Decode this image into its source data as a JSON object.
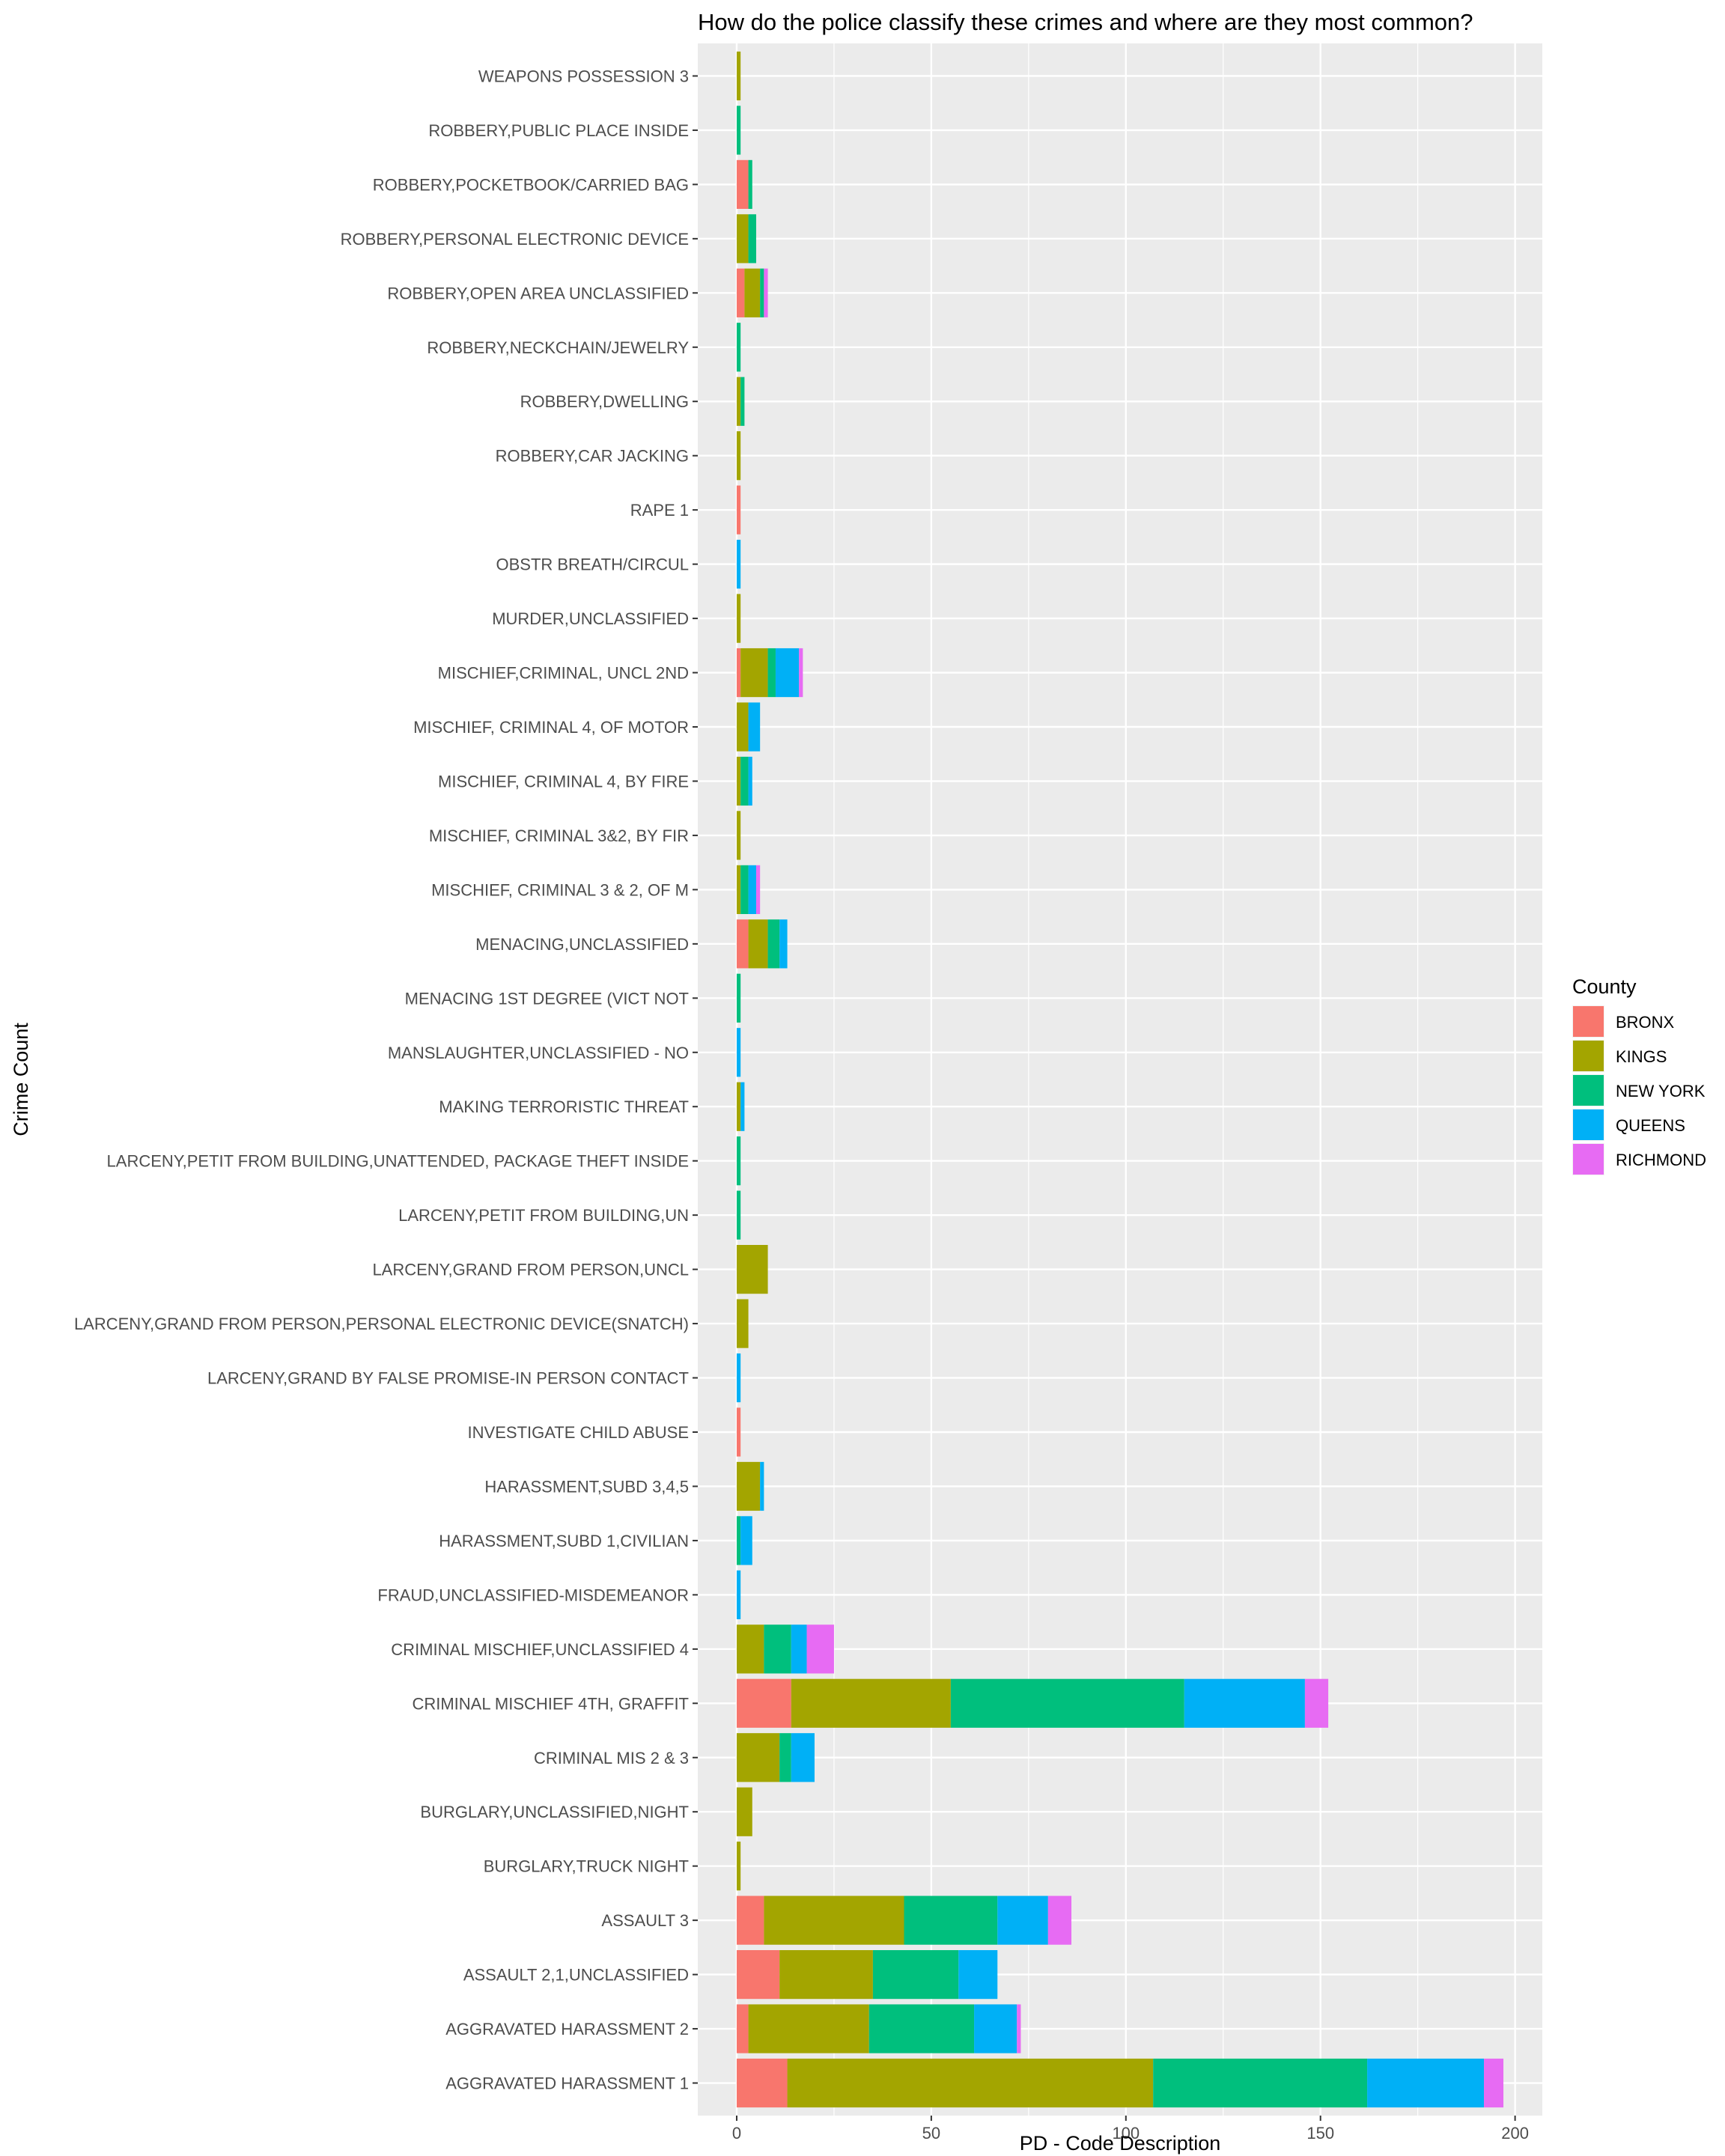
{
  "chart_data": {
    "type": "bar",
    "orientation": "horizontal",
    "stacked": true,
    "title": "How do the police classify these crimes and where are they most common?",
    "xlabel": "PD - Code Description",
    "ylabel": "Crime Count",
    "xlim": [
      -10,
      207
    ],
    "xticks": [
      0,
      50,
      100,
      150,
      200
    ],
    "grid": true,
    "legend": {
      "title": "County",
      "position": "right"
    },
    "categories": [
      "AGGRAVATED HARASSMENT 1",
      "AGGRAVATED HARASSMENT 2",
      "ASSAULT 2,1,UNCLASSIFIED",
      "ASSAULT 3",
      "BURGLARY,TRUCK NIGHT",
      "BURGLARY,UNCLASSIFIED,NIGHT",
      "CRIMINAL MIS 2 & 3",
      "CRIMINAL MISCHIEF 4TH, GRAFFIT",
      "CRIMINAL MISCHIEF,UNCLASSIFIED 4",
      "FRAUD,UNCLASSIFIED-MISDEMEANOR",
      "HARASSMENT,SUBD 1,CIVILIAN",
      "HARASSMENT,SUBD 3,4,5",
      "INVESTIGATE CHILD ABUSE",
      "LARCENY,GRAND BY FALSE PROMISE-IN PERSON CONTACT",
      "LARCENY,GRAND FROM PERSON,PERSONAL ELECTRONIC DEVICE(SNATCH)",
      "LARCENY,GRAND FROM PERSON,UNCL",
      "LARCENY,PETIT FROM BUILDING,UN",
      "LARCENY,PETIT FROM BUILDING,UNATTENDED, PACKAGE THEFT INSIDE",
      "MAKING TERRORISTIC THREAT",
      "MANSLAUGHTER,UNCLASSIFIED - NO",
      "MENACING 1ST DEGREE (VICT NOT",
      "MENACING,UNCLASSIFIED",
      "MISCHIEF, CRIMINAL 3 & 2, OF M",
      "MISCHIEF, CRIMINAL 3&2, BY FIR",
      "MISCHIEF, CRIMINAL 4, BY FIRE",
      "MISCHIEF, CRIMINAL 4, OF MOTOR",
      "MISCHIEF,CRIMINAL,    UNCL 2ND",
      "MURDER,UNCLASSIFIED",
      "OBSTR BREATH/CIRCUL",
      "RAPE 1",
      "ROBBERY,CAR JACKING",
      "ROBBERY,DWELLING",
      "ROBBERY,NECKCHAIN/JEWELRY",
      "ROBBERY,OPEN AREA UNCLASSIFIED",
      "ROBBERY,PERSONAL ELECTRONIC DEVICE",
      "ROBBERY,POCKETBOOK/CARRIED BAG",
      "ROBBERY,PUBLIC PLACE INSIDE",
      "WEAPONS POSSESSION 3"
    ],
    "series": [
      {
        "name": "BRONX",
        "color": "#F8766D",
        "values": [
          13,
          3,
          11,
          7,
          0,
          0,
          0,
          14,
          0,
          0,
          0,
          0,
          1,
          0,
          0,
          0,
          0,
          0,
          0,
          0,
          0,
          3,
          0,
          0,
          0,
          0,
          1,
          0,
          0,
          1,
          0,
          0,
          0,
          2,
          0,
          3,
          0,
          0
        ]
      },
      {
        "name": "KINGS",
        "color": "#A3A500",
        "values": [
          94,
          31,
          24,
          36,
          1,
          4,
          11,
          41,
          7,
          0,
          0,
          6,
          0,
          0,
          3,
          8,
          0,
          0,
          1,
          0,
          0,
          5,
          1,
          1,
          1,
          3,
          7,
          1,
          0,
          0,
          1,
          1,
          0,
          4,
          3,
          0,
          0,
          1
        ]
      },
      {
        "name": "NEW YORK",
        "color": "#00BF7D",
        "values": [
          55,
          27,
          22,
          24,
          0,
          0,
          3,
          60,
          7,
          0,
          1,
          0,
          0,
          0,
          0,
          0,
          1,
          1,
          0,
          0,
          1,
          3,
          2,
          0,
          2,
          0,
          2,
          0,
          0,
          0,
          0,
          1,
          1,
          1,
          2,
          1,
          1,
          0
        ]
      },
      {
        "name": "QUEENS",
        "color": "#00B0F6",
        "values": [
          30,
          11,
          10,
          13,
          0,
          0,
          6,
          31,
          4,
          1,
          3,
          1,
          0,
          1,
          0,
          0,
          0,
          0,
          1,
          1,
          0,
          2,
          2,
          0,
          1,
          3,
          6,
          0,
          1,
          0,
          0,
          0,
          0,
          0,
          0,
          0,
          0,
          0
        ]
      },
      {
        "name": "RICHMOND",
        "color": "#E76BF3",
        "values": [
          5,
          1,
          0,
          6,
          0,
          0,
          0,
          6,
          7,
          0,
          0,
          0,
          0,
          0,
          0,
          0,
          0,
          0,
          0,
          0,
          0,
          0,
          1,
          0,
          0,
          0,
          1,
          0,
          0,
          0,
          0,
          0,
          0,
          1,
          0,
          0,
          0,
          0
        ]
      }
    ]
  }
}
